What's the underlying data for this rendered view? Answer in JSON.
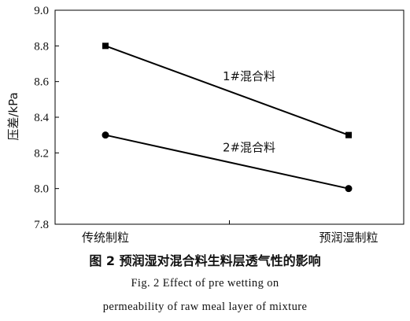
{
  "chart_data": {
    "type": "line",
    "categories": [
      "传统制粒",
      "预润湿制粒"
    ],
    "series": [
      {
        "name": "1#混合料",
        "values": [
          8.8,
          8.3
        ],
        "marker": "square"
      },
      {
        "name": "2#混合料",
        "values": [
          8.3,
          8.0
        ],
        "marker": "circle"
      }
    ],
    "title": "",
    "xlabel": "",
    "ylabel": "压差/kPa",
    "ylim": [
      7.8,
      9.0
    ],
    "yticks": [
      "7.8",
      "8.0",
      "8.2",
      "8.4",
      "8.6",
      "8.8",
      "9.0"
    ],
    "grid": false,
    "legend": "inline labels",
    "line_color": "#000000"
  },
  "caption": {
    "chinese": "图 2    预润湿对混合料生料层透气性的影响",
    "english_line1": "Fig. 2    Effect of pre wetting on",
    "english_line2": "permeability of raw meal layer of mixture"
  }
}
